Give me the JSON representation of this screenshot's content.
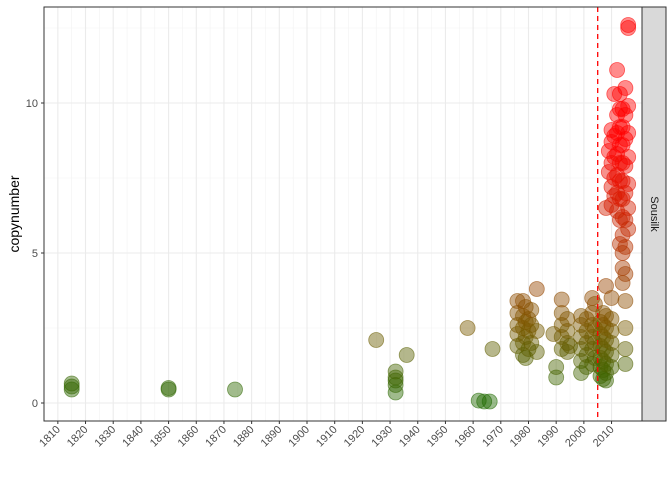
{
  "chart_data": {
    "type": "scatter",
    "title": "",
    "xlabel": "",
    "ylabel": "copynumber",
    "facet_label": "Sousilk",
    "xlim": [
      1805,
      2021
    ],
    "ylim": [
      -0.6,
      13.2
    ],
    "x_ticks": [
      1810,
      1820,
      1830,
      1840,
      1850,
      1860,
      1870,
      1880,
      1890,
      1900,
      1910,
      1920,
      1930,
      1940,
      1950,
      1960,
      1970,
      1980,
      1990,
      2000,
      2010
    ],
    "y_ticks": [
      0,
      5,
      10
    ],
    "grid": true,
    "vline": {
      "x": 2005,
      "color": "#ff0000",
      "style": "dashed"
    },
    "color_scale": {
      "low": "#1e6b00",
      "mid": "#7a5a00",
      "high": "#ff0000"
    },
    "points": [
      {
        "x": 1815,
        "y": 0.45
      },
      {
        "x": 1815,
        "y": 0.55
      },
      {
        "x": 1815,
        "y": 0.65
      },
      {
        "x": 1850,
        "y": 0.45
      },
      {
        "x": 1850,
        "y": 0.5
      },
      {
        "x": 1874,
        "y": 0.45
      },
      {
        "x": 1925,
        "y": 2.1
      },
      {
        "x": 1932,
        "y": 0.35
      },
      {
        "x": 1932,
        "y": 0.6
      },
      {
        "x": 1932,
        "y": 0.75
      },
      {
        "x": 1932,
        "y": 0.85
      },
      {
        "x": 1932,
        "y": 1.05
      },
      {
        "x": 1936,
        "y": 1.6
      },
      {
        "x": 1958,
        "y": 2.5
      },
      {
        "x": 1962,
        "y": 0.08
      },
      {
        "x": 1964,
        "y": 0.05
      },
      {
        "x": 1966,
        "y": 0.05
      },
      {
        "x": 1967,
        "y": 1.8
      },
      {
        "x": 1976,
        "y": 1.9
      },
      {
        "x": 1976,
        "y": 2.3
      },
      {
        "x": 1976,
        "y": 2.6
      },
      {
        "x": 1976,
        "y": 3.0
      },
      {
        "x": 1976,
        "y": 3.4
      },
      {
        "x": 1978,
        "y": 1.6
      },
      {
        "x": 1978,
        "y": 2.0
      },
      {
        "x": 1978,
        "y": 2.5
      },
      {
        "x": 1978,
        "y": 2.9
      },
      {
        "x": 1978,
        "y": 3.4
      },
      {
        "x": 1979,
        "y": 1.5
      },
      {
        "x": 1979,
        "y": 2.2
      },
      {
        "x": 1979,
        "y": 2.7
      },
      {
        "x": 1979,
        "y": 3.2
      },
      {
        "x": 1980,
        "y": 1.8
      },
      {
        "x": 1980,
        "y": 2.4
      },
      {
        "x": 1980,
        "y": 2.8
      },
      {
        "x": 1981,
        "y": 2.0
      },
      {
        "x": 1981,
        "y": 2.6
      },
      {
        "x": 1981,
        "y": 3.1
      },
      {
        "x": 1983,
        "y": 1.7
      },
      {
        "x": 1983,
        "y": 2.4
      },
      {
        "x": 1983,
        "y": 3.8
      },
      {
        "x": 1989,
        "y": 2.3
      },
      {
        "x": 1990,
        "y": 0.85
      },
      {
        "x": 1990,
        "y": 1.2
      },
      {
        "x": 1992,
        "y": 1.8
      },
      {
        "x": 1992,
        "y": 2.2
      },
      {
        "x": 1992,
        "y": 2.6
      },
      {
        "x": 1992,
        "y": 3.0
      },
      {
        "x": 1992,
        "y": 3.45
      },
      {
        "x": 1994,
        "y": 1.7
      },
      {
        "x": 1994,
        "y": 2.0
      },
      {
        "x": 1994,
        "y": 2.4
      },
      {
        "x": 1994,
        "y": 2.8
      },
      {
        "x": 1995,
        "y": 1.9
      },
      {
        "x": 1999,
        "y": 1.0
      },
      {
        "x": 1999,
        "y": 1.4
      },
      {
        "x": 1999,
        "y": 1.8
      },
      {
        "x": 1999,
        "y": 2.2
      },
      {
        "x": 1999,
        "y": 2.6
      },
      {
        "x": 1999,
        "y": 2.9
      },
      {
        "x": 2001,
        "y": 1.2
      },
      {
        "x": 2001,
        "y": 1.6
      },
      {
        "x": 2001,
        "y": 2.0
      },
      {
        "x": 2001,
        "y": 2.4
      },
      {
        "x": 2001,
        "y": 2.8
      },
      {
        "x": 2003,
        "y": 1.3
      },
      {
        "x": 2003,
        "y": 1.8
      },
      {
        "x": 2003,
        "y": 2.2
      },
      {
        "x": 2003,
        "y": 2.6
      },
      {
        "x": 2003,
        "y": 3.0
      },
      {
        "x": 2003,
        "y": 3.5
      },
      {
        "x": 2004,
        "y": 1.5
      },
      {
        "x": 2004,
        "y": 2.0
      },
      {
        "x": 2004,
        "y": 2.5
      },
      {
        "x": 2004,
        "y": 3.3
      },
      {
        "x": 2006,
        "y": 0.9
      },
      {
        "x": 2006,
        "y": 1.2
      },
      {
        "x": 2006,
        "y": 1.5
      },
      {
        "x": 2006,
        "y": 1.9
      },
      {
        "x": 2006,
        "y": 2.3
      },
      {
        "x": 2006,
        "y": 2.7
      },
      {
        "x": 2007,
        "y": 0.8
      },
      {
        "x": 2007,
        "y": 1.1
      },
      {
        "x": 2007,
        "y": 1.4
      },
      {
        "x": 2007,
        "y": 1.8
      },
      {
        "x": 2007,
        "y": 2.2
      },
      {
        "x": 2007,
        "y": 2.6
      },
      {
        "x": 2007,
        "y": 3.0
      },
      {
        "x": 2008,
        "y": 0.75
      },
      {
        "x": 2008,
        "y": 1.0
      },
      {
        "x": 2008,
        "y": 1.3
      },
      {
        "x": 2008,
        "y": 1.7
      },
      {
        "x": 2008,
        "y": 2.1
      },
      {
        "x": 2008,
        "y": 2.5
      },
      {
        "x": 2008,
        "y": 2.9
      },
      {
        "x": 2008,
        "y": 3.9
      },
      {
        "x": 2008,
        "y": 6.5
      },
      {
        "x": 2009,
        "y": 7.7
      },
      {
        "x": 2009,
        "y": 8.4
      },
      {
        "x": 2010,
        "y": 1.2
      },
      {
        "x": 2010,
        "y": 1.6
      },
      {
        "x": 2010,
        "y": 2.0
      },
      {
        "x": 2010,
        "y": 2.4
      },
      {
        "x": 2010,
        "y": 2.8
      },
      {
        "x": 2010,
        "y": 3.5
      },
      {
        "x": 2010,
        "y": 6.6
      },
      {
        "x": 2010,
        "y": 7.2
      },
      {
        "x": 2010,
        "y": 8.0
      },
      {
        "x": 2010,
        "y": 8.7
      },
      {
        "x": 2010,
        "y": 9.1
      },
      {
        "x": 2011,
        "y": 6.9
      },
      {
        "x": 2011,
        "y": 7.5
      },
      {
        "x": 2011,
        "y": 8.2
      },
      {
        "x": 2011,
        "y": 8.9
      },
      {
        "x": 2011,
        "y": 10.3
      },
      {
        "x": 2012,
        "y": 6.4
      },
      {
        "x": 2012,
        "y": 7.0
      },
      {
        "x": 2012,
        "y": 7.6
      },
      {
        "x": 2012,
        "y": 8.3
      },
      {
        "x": 2012,
        "y": 9.0
      },
      {
        "x": 2012,
        "y": 9.6
      },
      {
        "x": 2012,
        "y": 11.1
      },
      {
        "x": 2013,
        "y": 5.3
      },
      {
        "x": 2013,
        "y": 6.1
      },
      {
        "x": 2013,
        "y": 6.8
      },
      {
        "x": 2013,
        "y": 7.4
      },
      {
        "x": 2013,
        "y": 8.0
      },
      {
        "x": 2013,
        "y": 8.6
      },
      {
        "x": 2013,
        "y": 9.2
      },
      {
        "x": 2013,
        "y": 9.8
      },
      {
        "x": 2013,
        "y": 10.3
      },
      {
        "x": 2014,
        "y": 4.0
      },
      {
        "x": 2014,
        "y": 4.5
      },
      {
        "x": 2014,
        "y": 5.0
      },
      {
        "x": 2014,
        "y": 5.6
      },
      {
        "x": 2014,
        "y": 6.2
      },
      {
        "x": 2014,
        "y": 6.8
      },
      {
        "x": 2014,
        "y": 7.4
      },
      {
        "x": 2014,
        "y": 8.0
      },
      {
        "x": 2014,
        "y": 8.6
      },
      {
        "x": 2014,
        "y": 9.2
      },
      {
        "x": 2014,
        "y": 9.8
      },
      {
        "x": 2015,
        "y": 1.3
      },
      {
        "x": 2015,
        "y": 1.8
      },
      {
        "x": 2015,
        "y": 2.5
      },
      {
        "x": 2015,
        "y": 3.4
      },
      {
        "x": 2015,
        "y": 4.3
      },
      {
        "x": 2015,
        "y": 5.2
      },
      {
        "x": 2015,
        "y": 6.1
      },
      {
        "x": 2015,
        "y": 7.0
      },
      {
        "x": 2015,
        "y": 7.9
      },
      {
        "x": 2015,
        "y": 8.8
      },
      {
        "x": 2015,
        "y": 9.6
      },
      {
        "x": 2015,
        "y": 10.5
      },
      {
        "x": 2016,
        "y": 5.8
      },
      {
        "x": 2016,
        "y": 6.5
      },
      {
        "x": 2016,
        "y": 7.3
      },
      {
        "x": 2016,
        "y": 8.2
      },
      {
        "x": 2016,
        "y": 9.0
      },
      {
        "x": 2016,
        "y": 9.9
      },
      {
        "x": 2016,
        "y": 12.5
      },
      {
        "x": 2016,
        "y": 12.6
      }
    ]
  }
}
